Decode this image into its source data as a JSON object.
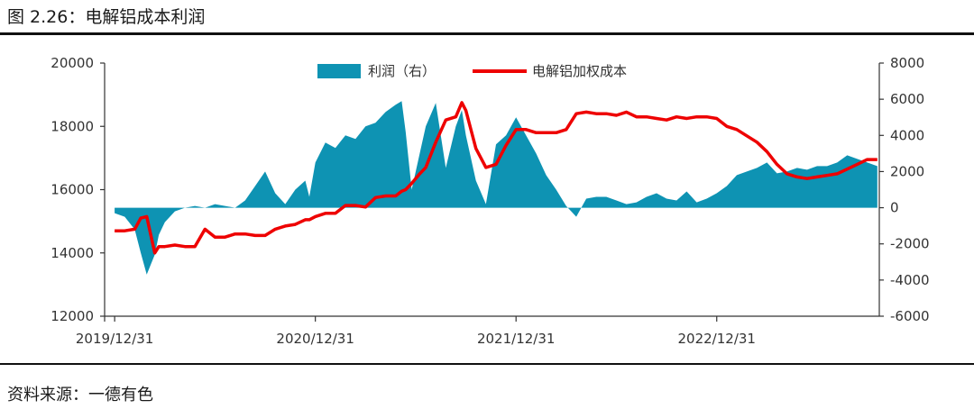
{
  "figure": {
    "title": "图 2.26：电解铝成本利润",
    "source": "资料来源：一德有色"
  },
  "chart_data": {
    "type": "line",
    "title": "电解铝成本利润",
    "legend": {
      "placement": "top-center"
    },
    "colors": {
      "profit": "#0e93b3",
      "cost": "#ee0000",
      "axis": "#333333"
    },
    "x_ticks": [
      "2019/12/31",
      "2020/12/31",
      "2021/12/31",
      "2022/12/31"
    ],
    "x_range": [
      2019.95,
      2023.81
    ],
    "left_axis": {
      "ylim": [
        12000,
        20000
      ],
      "ticks": [
        "12000",
        "14000",
        "16000",
        "18000",
        "20000"
      ]
    },
    "right_axis": {
      "ylim": [
        -6000,
        8000
      ],
      "ticks": [
        "-6000",
        "-4000",
        "-2000",
        "0",
        "2000",
        "4000",
        "6000",
        "8000"
      ]
    },
    "series": [
      {
        "name": "利润（右）",
        "type": "area",
        "axis": "right",
        "x": [
          2020.0,
          2020.05,
          2020.1,
          2020.13,
          2020.16,
          2020.2,
          2020.22,
          2020.25,
          2020.3,
          2020.35,
          2020.4,
          2020.45,
          2020.5,
          2020.55,
          2020.6,
          2020.65,
          2020.7,
          2020.75,
          2020.8,
          2020.85,
          2020.9,
          2020.95,
          2020.97,
          2021.0,
          2021.05,
          2021.1,
          2021.15,
          2021.2,
          2021.25,
          2021.3,
          2021.35,
          2021.4,
          2021.43,
          2021.45,
          2021.48,
          2021.52,
          2021.55,
          2021.6,
          2021.65,
          2021.7,
          2021.73,
          2021.75,
          2021.8,
          2021.85,
          2021.9,
          2021.95,
          2022.0,
          2022.05,
          2022.1,
          2022.15,
          2022.2,
          2022.25,
          2022.3,
          2022.35,
          2022.4,
          2022.45,
          2022.5,
          2022.55,
          2022.6,
          2022.65,
          2022.7,
          2022.75,
          2022.8,
          2022.85,
          2022.9,
          2022.95,
          2023.0,
          2023.05,
          2023.1,
          2023.15,
          2023.2,
          2023.25,
          2023.3,
          2023.35,
          2023.4,
          2023.45,
          2023.5,
          2023.55,
          2023.6,
          2023.65,
          2023.7,
          2023.75,
          2023.8
        ],
        "values": [
          -300,
          -500,
          -1200,
          -2500,
          -3700,
          -2600,
          -1500,
          -800,
          -200,
          0,
          100,
          0,
          200,
          100,
          0,
          400,
          1200,
          2000,
          800,
          200,
          1000,
          1500,
          600,
          2500,
          3600,
          3300,
          4000,
          3800,
          4500,
          4700,
          5300,
          5700,
          5900,
          4200,
          1000,
          3000,
          4500,
          5800,
          2200,
          4500,
          5400,
          4000,
          1500,
          200,
          3500,
          4000,
          5000,
          4000,
          3000,
          1800,
          1000,
          100,
          -500,
          500,
          600,
          600,
          400,
          200,
          300,
          600,
          800,
          500,
          400,
          900,
          300,
          500,
          800,
          1200,
          1800,
          2000,
          2200,
          2500,
          1900,
          2000,
          2200,
          2100,
          2300,
          2300,
          2500,
          2900,
          2700,
          2500,
          2300
        ]
      },
      {
        "name": "电解铝加权成本",
        "type": "line",
        "axis": "left",
        "x": [
          2020.0,
          2020.05,
          2020.1,
          2020.13,
          2020.16,
          2020.2,
          2020.22,
          2020.25,
          2020.3,
          2020.35,
          2020.4,
          2020.45,
          2020.5,
          2020.55,
          2020.6,
          2020.65,
          2020.7,
          2020.75,
          2020.8,
          2020.85,
          2020.9,
          2020.95,
          2020.97,
          2021.0,
          2021.05,
          2021.1,
          2021.15,
          2021.2,
          2021.25,
          2021.3,
          2021.35,
          2021.4,
          2021.43,
          2021.45,
          2021.48,
          2021.52,
          2021.55,
          2021.6,
          2021.65,
          2021.7,
          2021.73,
          2021.75,
          2021.8,
          2021.85,
          2021.9,
          2021.95,
          2022.0,
          2022.05,
          2022.1,
          2022.15,
          2022.2,
          2022.25,
          2022.3,
          2022.35,
          2022.4,
          2022.45,
          2022.5,
          2022.55,
          2022.6,
          2022.65,
          2022.7,
          2022.75,
          2022.8,
          2022.85,
          2022.9,
          2022.95,
          2023.0,
          2023.05,
          2023.1,
          2023.15,
          2023.2,
          2023.25,
          2023.3,
          2023.35,
          2023.4,
          2023.45,
          2023.5,
          2023.55,
          2023.6,
          2023.65,
          2023.7,
          2023.75,
          2023.8
        ],
        "values": [
          14700,
          14700,
          14750,
          15100,
          15150,
          14000,
          14200,
          14200,
          14250,
          14200,
          14200,
          14750,
          14500,
          14500,
          14600,
          14600,
          14550,
          14550,
          14750,
          14850,
          14900,
          15050,
          15050,
          15150,
          15250,
          15250,
          15500,
          15500,
          15450,
          15750,
          15800,
          15800,
          15950,
          16000,
          16200,
          16500,
          16700,
          17500,
          18200,
          18300,
          18750,
          18500,
          17300,
          16700,
          16800,
          17400,
          17900,
          17900,
          17800,
          17800,
          17800,
          17900,
          18400,
          18450,
          18400,
          18400,
          18350,
          18450,
          18300,
          18300,
          18250,
          18200,
          18300,
          18250,
          18300,
          18300,
          18250,
          18000,
          17900,
          17700,
          17500,
          17200,
          16800,
          16500,
          16400,
          16350,
          16400,
          16450,
          16500,
          16650,
          16800,
          16950,
          16950
        ]
      }
    ]
  }
}
